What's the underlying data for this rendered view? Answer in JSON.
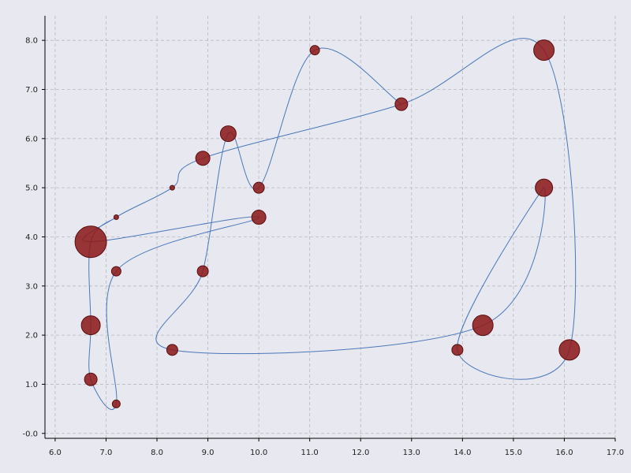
{
  "chart_data": {
    "type": "scatter",
    "title": "",
    "xlabel": "",
    "ylabel": "",
    "xlim": [
      5.8,
      17.0
    ],
    "ylim": [
      -0.1,
      8.5
    ],
    "xticks": [
      "6.0",
      "7.0",
      "8.0",
      "9.0",
      "10.0",
      "11.0",
      "12.0",
      "13.0",
      "14.0",
      "15.0",
      "16.0",
      "17.0"
    ],
    "yticks": [
      "-0.0",
      "1.0",
      "2.0",
      "3.0",
      "4.0",
      "5.0",
      "6.0",
      "7.0",
      "8.0"
    ],
    "grid": true,
    "connecting_line": "smooth curve through points in order",
    "colors": {
      "background": "#e8e8f0",
      "point_fill": "#8b1a1a",
      "point_edge": "#5a0f0f",
      "line": "#4a78b8",
      "grid": "#b8b8c0"
    },
    "points": [
      {
        "x": 7.2,
        "y": 4.4,
        "size": 3
      },
      {
        "x": 6.7,
        "y": 3.9,
        "size": 20
      },
      {
        "x": 6.7,
        "y": 2.2,
        "size": 12
      },
      {
        "x": 6.7,
        "y": 1.1,
        "size": 8
      },
      {
        "x": 7.2,
        "y": 0.6,
        "size": 5
      },
      {
        "x": 7.2,
        "y": 3.3,
        "size": 6
      },
      {
        "x": 10.0,
        "y": 4.4,
        "size": 9
      },
      {
        "x": 6.7,
        "y": 3.9,
        "size": 20
      },
      {
        "x": 7.2,
        "y": 4.4,
        "size": 3
      },
      {
        "x": 8.3,
        "y": 5.0,
        "size": 3
      },
      {
        "x": 8.9,
        "y": 5.6,
        "size": 9
      },
      {
        "x": 12.8,
        "y": 6.7,
        "size": 8
      },
      {
        "x": 15.6,
        "y": 7.8,
        "size": 13
      },
      {
        "x": 16.1,
        "y": 1.7,
        "size": 13
      },
      {
        "x": 13.9,
        "y": 1.7,
        "size": 7
      },
      {
        "x": 15.6,
        "y": 5.0,
        "size": 11
      },
      {
        "x": 14.4,
        "y": 2.2,
        "size": 13
      },
      {
        "x": 8.3,
        "y": 1.7,
        "size": 7
      },
      {
        "x": 8.9,
        "y": 3.3,
        "size": 7
      },
      {
        "x": 9.4,
        "y": 6.1,
        "size": 10
      },
      {
        "x": 10.0,
        "y": 5.0,
        "size": 7
      },
      {
        "x": 11.1,
        "y": 7.8,
        "size": 6
      },
      {
        "x": 12.8,
        "y": 6.7,
        "size": 8
      }
    ]
  }
}
